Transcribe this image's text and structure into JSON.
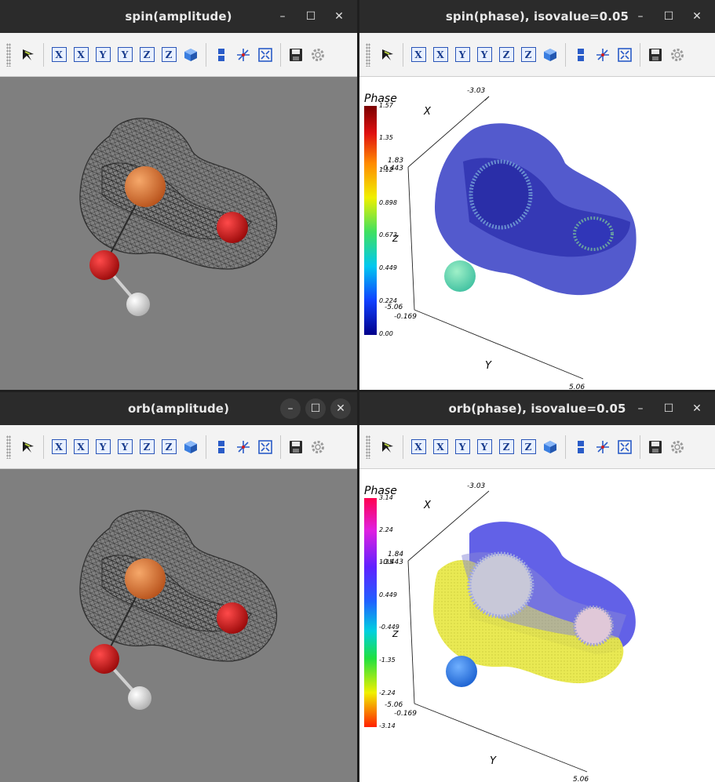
{
  "windows": {
    "spin_amp": {
      "title": "spin(amplitude)"
    },
    "spin_phase": {
      "title": "spin(phase), isovalue=0.05",
      "legend": {
        "title": "Phase",
        "ticks": [
          "1.57",
          "1.35",
          "1.12",
          "0.898",
          "0.673",
          "0.449",
          "0.224",
          "0.00"
        ]
      },
      "axes": {
        "x_label": "X",
        "y_label": "Y",
        "z_label": "Z",
        "x_top": "-3.03",
        "z_top": "1.83",
        "origin_top": "-0.443",
        "z_bottom": "-5.06",
        "y_start": "-0.169",
        "y_end": "5.06"
      }
    },
    "orb_amp": {
      "title": "orb(amplitude)"
    },
    "orb_phase": {
      "title": "orb(phase), isovalue=0.05",
      "legend": {
        "title": "Phase",
        "ticks": [
          "3.14",
          "2.24",
          "1.35",
          "0.449",
          "-0.449",
          "-1.35",
          "-2.24",
          "-3.14"
        ]
      },
      "axes": {
        "x_label": "X",
        "y_label": "Y",
        "z_label": "Z",
        "x_top": "-3.03",
        "z_top": "1.84",
        "origin_top": "-0.443",
        "z_bottom": "-5.06",
        "y_start": "-0.169",
        "y_end": "5.06"
      }
    }
  },
  "window_controls": {
    "minimize": "–",
    "maximize": "☐",
    "close": "✕"
  },
  "toolbar": {
    "buttons": [
      {
        "name": "trackball-rotate-icon"
      },
      {
        "name": "view-x-pos-button",
        "label": "X"
      },
      {
        "name": "view-x-neg-button",
        "label": "X"
      },
      {
        "name": "view-y-pos-button",
        "label": "Y"
      },
      {
        "name": "view-y-neg-button",
        "label": "Y"
      },
      {
        "name": "view-z-pos-button",
        "label": "Z"
      },
      {
        "name": "view-z-neg-button",
        "label": "Z"
      },
      {
        "name": "isometric-cube-icon"
      },
      {
        "name": "split-view-icon"
      },
      {
        "name": "reset-axes-icon"
      },
      {
        "name": "fit-view-icon"
      },
      {
        "name": "save-icon"
      },
      {
        "name": "settings-gear-icon"
      }
    ]
  },
  "colors": {
    "titlebar": "#2b2b2b",
    "amplitude_bg": "#7f7f7f",
    "phase_bg": "#ffffff",
    "spin_isosurface": "#3b40c8",
    "orb_isosurface_pos": "#5a5ae6",
    "orb_isosurface_neg": "#e6e650",
    "atom_transition_metal": "#e07a3a",
    "atom_oxygen": "#d41414",
    "atom_hydrogen": "#f0f0f0"
  }
}
